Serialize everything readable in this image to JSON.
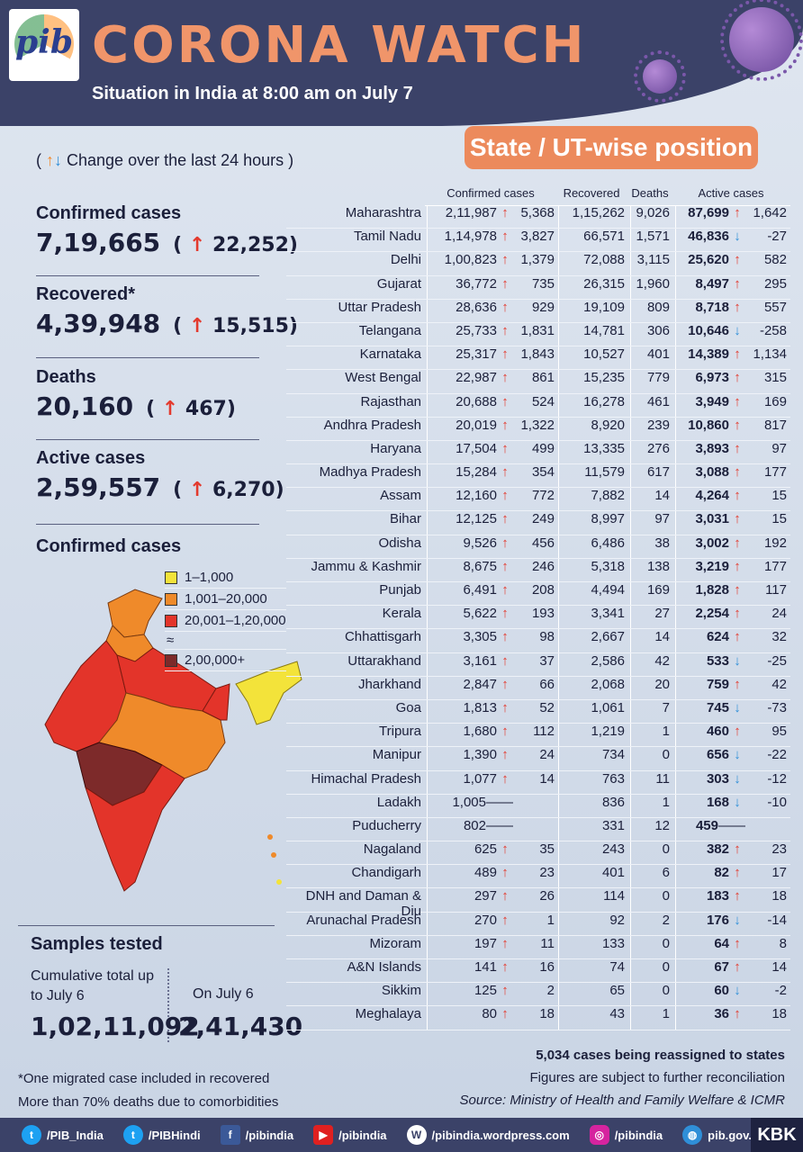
{
  "header": {
    "logo_text": "pib",
    "title": "CORONA WATCH",
    "subtitle": "Situation in India at 8:00 am on July 7",
    "badge": "State / UT-wise position"
  },
  "change_note": "Change over the last 24 hours",
  "summary": [
    {
      "label": "Confirmed cases",
      "value": "7,19,665",
      "delta": "22,252"
    },
    {
      "label": "Recovered*",
      "value": "4,39,948",
      "delta": "15,515"
    },
    {
      "label": "Deaths",
      "value": "20,160",
      "delta": "467"
    },
    {
      "label": "Active cases",
      "value": "2,59,557",
      "delta": "6,270"
    }
  ],
  "map": {
    "title": "Confirmed cases",
    "legend": [
      {
        "label": "1–1,000",
        "color": "#f3e33a"
      },
      {
        "label": "1,001–20,000",
        "color": "#ef8a2a"
      },
      {
        "label": "20,001–1,20,000",
        "color": "#e3342a"
      },
      {
        "label": "2,00,000+",
        "color": "#7d2a2a"
      }
    ]
  },
  "samples": {
    "title": "Samples tested",
    "cumulative_label": "Cumulative total up to July 6",
    "cumulative_value": "1,02,11,092",
    "day_label": "On July 6",
    "day_value": "2,41,430"
  },
  "table": {
    "headers": {
      "confirmed": "Confirmed cases",
      "recovered": "Recovered",
      "deaths": "Deaths",
      "active": "Active cases"
    },
    "rows": [
      {
        "state": "Maharashtra",
        "confirmed": "2,11,987",
        "c_dir": "up",
        "c_chg": "5,368",
        "recovered": "1,15,262",
        "deaths": "9,026",
        "active": "87,699",
        "a_dir": "up",
        "a_chg": "1,642"
      },
      {
        "state": "Tamil Nadu",
        "confirmed": "1,14,978",
        "c_dir": "up",
        "c_chg": "3,827",
        "recovered": "66,571",
        "deaths": "1,571",
        "active": "46,836",
        "a_dir": "down",
        "a_chg": "-27"
      },
      {
        "state": "Delhi",
        "confirmed": "1,00,823",
        "c_dir": "up",
        "c_chg": "1,379",
        "recovered": "72,088",
        "deaths": "3,115",
        "active": "25,620",
        "a_dir": "up",
        "a_chg": "582"
      },
      {
        "state": "Gujarat",
        "confirmed": "36,772",
        "c_dir": "up",
        "c_chg": "735",
        "recovered": "26,315",
        "deaths": "1,960",
        "active": "8,497",
        "a_dir": "up",
        "a_chg": "295"
      },
      {
        "state": "Uttar Pradesh",
        "confirmed": "28,636",
        "c_dir": "up",
        "c_chg": "929",
        "recovered": "19,109",
        "deaths": "809",
        "active": "8,718",
        "a_dir": "up",
        "a_chg": "557"
      },
      {
        "state": "Telangana",
        "confirmed": "25,733",
        "c_dir": "up",
        "c_chg": "1,831",
        "recovered": "14,781",
        "deaths": "306",
        "active": "10,646",
        "a_dir": "down",
        "a_chg": "-258"
      },
      {
        "state": "Karnataka",
        "confirmed": "25,317",
        "c_dir": "up",
        "c_chg": "1,843",
        "recovered": "10,527",
        "deaths": "401",
        "active": "14,389",
        "a_dir": "up",
        "a_chg": "1,134"
      },
      {
        "state": "West Bengal",
        "confirmed": "22,987",
        "c_dir": "up",
        "c_chg": "861",
        "recovered": "15,235",
        "deaths": "779",
        "active": "6,973",
        "a_dir": "up",
        "a_chg": "315"
      },
      {
        "state": "Rajasthan",
        "confirmed": "20,688",
        "c_dir": "up",
        "c_chg": "524",
        "recovered": "16,278",
        "deaths": "461",
        "active": "3,949",
        "a_dir": "up",
        "a_chg": "169"
      },
      {
        "state": "Andhra Pradesh",
        "confirmed": "20,019",
        "c_dir": "up",
        "c_chg": "1,322",
        "recovered": "8,920",
        "deaths": "239",
        "active": "10,860",
        "a_dir": "up",
        "a_chg": "817"
      },
      {
        "state": "Haryana",
        "confirmed": "17,504",
        "c_dir": "up",
        "c_chg": "499",
        "recovered": "13,335",
        "deaths": "276",
        "active": "3,893",
        "a_dir": "up",
        "a_chg": "97"
      },
      {
        "state": "Madhya Pradesh",
        "confirmed": "15,284",
        "c_dir": "up",
        "c_chg": "354",
        "recovered": "11,579",
        "deaths": "617",
        "active": "3,088",
        "a_dir": "up",
        "a_chg": "177"
      },
      {
        "state": "Assam",
        "confirmed": "12,160",
        "c_dir": "up",
        "c_chg": "772",
        "recovered": "7,882",
        "deaths": "14",
        "active": "4,264",
        "a_dir": "up",
        "a_chg": "15"
      },
      {
        "state": "Bihar",
        "confirmed": "12,125",
        "c_dir": "up",
        "c_chg": "249",
        "recovered": "8,997",
        "deaths": "97",
        "active": "3,031",
        "a_dir": "up",
        "a_chg": "15"
      },
      {
        "state": "Odisha",
        "confirmed": "9,526",
        "c_dir": "up",
        "c_chg": "456",
        "recovered": "6,486",
        "deaths": "38",
        "active": "3,002",
        "a_dir": "up",
        "a_chg": "192"
      },
      {
        "state": "Jammu & Kashmir",
        "confirmed": "8,675",
        "c_dir": "up",
        "c_chg": "246",
        "recovered": "5,318",
        "deaths": "138",
        "active": "3,219",
        "a_dir": "up",
        "a_chg": "177"
      },
      {
        "state": "Punjab",
        "confirmed": "6,491",
        "c_dir": "up",
        "c_chg": "208",
        "recovered": "4,494",
        "deaths": "169",
        "active": "1,828",
        "a_dir": "up",
        "a_chg": "117"
      },
      {
        "state": "Kerala",
        "confirmed": "5,622",
        "c_dir": "up",
        "c_chg": "193",
        "recovered": "3,341",
        "deaths": "27",
        "active": "2,254",
        "a_dir": "up",
        "a_chg": "24"
      },
      {
        "state": "Chhattisgarh",
        "confirmed": "3,305",
        "c_dir": "up",
        "c_chg": "98",
        "recovered": "2,667",
        "deaths": "14",
        "active": "624",
        "a_dir": "up",
        "a_chg": "32"
      },
      {
        "state": "Uttarakhand",
        "confirmed": "3,161",
        "c_dir": "up",
        "c_chg": "37",
        "recovered": "2,586",
        "deaths": "42",
        "active": "533",
        "a_dir": "down",
        "a_chg": "-25"
      },
      {
        "state": "Jharkhand",
        "confirmed": "2,847",
        "c_dir": "up",
        "c_chg": "66",
        "recovered": "2,068",
        "deaths": "20",
        "active": "759",
        "a_dir": "up",
        "a_chg": "42"
      },
      {
        "state": "Goa",
        "confirmed": "1,813",
        "c_dir": "up",
        "c_chg": "52",
        "recovered": "1,061",
        "deaths": "7",
        "active": "745",
        "a_dir": "down",
        "a_chg": "-73"
      },
      {
        "state": "Tripura",
        "confirmed": "1,680",
        "c_dir": "up",
        "c_chg": "112",
        "recovered": "1,219",
        "deaths": "1",
        "active": "460",
        "a_dir": "up",
        "a_chg": "95"
      },
      {
        "state": "Manipur",
        "confirmed": "1,390",
        "c_dir": "up",
        "c_chg": "24",
        "recovered": "734",
        "deaths": "0",
        "active": "656",
        "a_dir": "down",
        "a_chg": "-22"
      },
      {
        "state": "Himachal Pradesh",
        "confirmed": "1,077",
        "c_dir": "up",
        "c_chg": "14",
        "recovered": "763",
        "deaths": "11",
        "active": "303",
        "a_dir": "down",
        "a_chg": "-12"
      },
      {
        "state": "Ladakh",
        "confirmed": "1,005",
        "c_dir": "none",
        "c_chg": "",
        "recovered": "836",
        "deaths": "1",
        "active": "168",
        "a_dir": "down",
        "a_chg": "-10"
      },
      {
        "state": "Puducherry",
        "confirmed": "802",
        "c_dir": "none",
        "c_chg": "",
        "recovered": "331",
        "deaths": "12",
        "active": "459",
        "a_dir": "none",
        "a_chg": ""
      },
      {
        "state": "Nagaland",
        "confirmed": "625",
        "c_dir": "up",
        "c_chg": "35",
        "recovered": "243",
        "deaths": "0",
        "active": "382",
        "a_dir": "up",
        "a_chg": "23"
      },
      {
        "state": "Chandigarh",
        "confirmed": "489",
        "c_dir": "up",
        "c_chg": "23",
        "recovered": "401",
        "deaths": "6",
        "active": "82",
        "a_dir": "up",
        "a_chg": "17"
      },
      {
        "state": "DNH and Daman & Diu",
        "confirmed": "297",
        "c_dir": "up",
        "c_chg": "26",
        "recovered": "114",
        "deaths": "0",
        "active": "183",
        "a_dir": "up",
        "a_chg": "18"
      },
      {
        "state": "Arunachal Pradesh",
        "confirmed": "270",
        "c_dir": "up",
        "c_chg": "1",
        "recovered": "92",
        "deaths": "2",
        "active": "176",
        "a_dir": "down",
        "a_chg": "-14"
      },
      {
        "state": "Mizoram",
        "confirmed": "197",
        "c_dir": "up",
        "c_chg": "11",
        "recovered": "133",
        "deaths": "0",
        "active": "64",
        "a_dir": "up",
        "a_chg": "8"
      },
      {
        "state": "A&N Islands",
        "confirmed": "141",
        "c_dir": "up",
        "c_chg": "16",
        "recovered": "74",
        "deaths": "0",
        "active": "67",
        "a_dir": "up",
        "a_chg": "14"
      },
      {
        "state": "Sikkim",
        "confirmed": "125",
        "c_dir": "up",
        "c_chg": "2",
        "recovered": "65",
        "deaths": "0",
        "active": "60",
        "a_dir": "down",
        "a_chg": "-2"
      },
      {
        "state": "Meghalaya",
        "confirmed": "80",
        "c_dir": "up",
        "c_chg": "18",
        "recovered": "43",
        "deaths": "1",
        "active": "36",
        "a_dir": "up",
        "a_chg": "18"
      }
    ]
  },
  "footer": {
    "reassigned": "5,034 cases being reassigned to states",
    "reconciliation": "Figures are subject to further reconciliation",
    "source": "Source: Ministry of Health and Family Welfare & ICMR",
    "note1": "*One migrated case included in recovered",
    "note2": "More than 70% deaths due to comorbidities"
  },
  "social": [
    {
      "icon": "twitter-icon",
      "label": "/PIB_India"
    },
    {
      "icon": "twitter-icon",
      "label": "/PIBHindi"
    },
    {
      "icon": "facebook-icon",
      "label": "/pibindia"
    },
    {
      "icon": "youtube-icon",
      "label": "/pibindia"
    },
    {
      "icon": "wordpress-icon",
      "label": "/pibindia.wordpress.com"
    },
    {
      "icon": "instagram-icon",
      "label": "/pibindia"
    },
    {
      "icon": "globe-icon",
      "label": "pib.gov.in"
    }
  ],
  "kbk": "KBK",
  "colors": {
    "up": "#e33a2e",
    "down": "#2f8fd8",
    "accent": "#ec8a5c",
    "navy": "#3b4268"
  }
}
